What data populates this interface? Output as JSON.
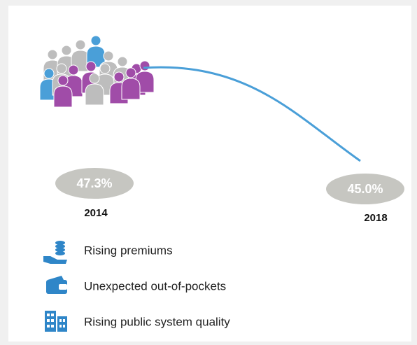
{
  "chart_data": {
    "type": "line",
    "x": [
      "2014",
      "2018"
    ],
    "values": [
      47.3,
      45.0
    ],
    "value_labels": [
      "47.3%",
      "45.0%"
    ],
    "color": "#4a9fd8"
  },
  "factors": [
    "Rising premiums",
    "Unexpected out-of-pockets",
    "Rising public system quality"
  ]
}
